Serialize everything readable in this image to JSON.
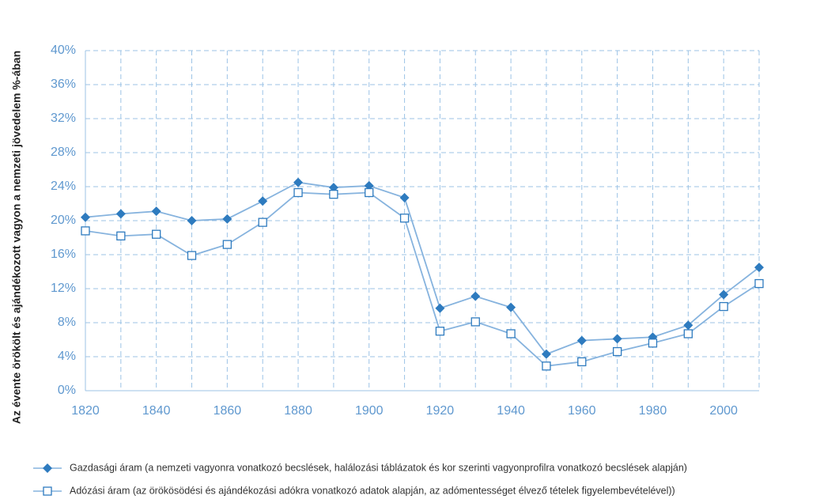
{
  "chart_data": {
    "type": "line",
    "ylabel": "Az évente örökölt és ajándékozott vagyon a nemzeti jövedelem %-ában",
    "x": [
      1820,
      1830,
      1840,
      1850,
      1860,
      1870,
      1880,
      1890,
      1900,
      1910,
      1920,
      1930,
      1940,
      1950,
      1960,
      1970,
      1980,
      1990,
      2000,
      2010
    ],
    "series": [
      {
        "name": "Gazdasági áram (a nemzeti vagyonra vonatkozó becslések, halálozási táblázatok és kor szerinti vagyonprofilra vonatkozó becslések alapján)",
        "color": "#2e7bbf",
        "marker": "diamond",
        "values": [
          20.4,
          20.8,
          21.1,
          20.0,
          20.2,
          22.3,
          24.5,
          23.9,
          24.1,
          22.7,
          9.7,
          11.1,
          9.8,
          4.3,
          5.9,
          6.1,
          6.3,
          7.7,
          11.3,
          14.5
        ]
      },
      {
        "name": "Adózási áram (az örökösödési és ajándékozási adókra vonatkozó adatok alapján, az adómentességet élvező tételek figyelembevételével))",
        "color": "#2e7bbf",
        "marker": "square",
        "values": [
          18.8,
          18.2,
          18.4,
          15.9,
          17.2,
          19.8,
          23.3,
          23.1,
          23.3,
          20.3,
          7.0,
          8.1,
          6.7,
          2.9,
          3.4,
          4.6,
          5.6,
          6.7,
          9.9,
          12.6
        ]
      }
    ],
    "xlim": [
      1820,
      2010
    ],
    "xticks": [
      1820,
      1840,
      1860,
      1880,
      1900,
      1920,
      1940,
      1960,
      1980,
      2000
    ],
    "x_minor_ticks": [
      1830,
      1850,
      1870,
      1890,
      1910,
      1930,
      1950,
      1970,
      1990,
      2010
    ],
    "ylim": [
      0,
      40
    ],
    "yticks": [
      {
        "value": 0,
        "label": "0%"
      },
      {
        "value": 4,
        "label": "4%"
      },
      {
        "value": 8,
        "label": "8%"
      },
      {
        "value": 12,
        "label": "12%"
      },
      {
        "value": 16,
        "label": "16%"
      },
      {
        "value": 20,
        "label": "20%"
      },
      {
        "value": 24,
        "label": "24%"
      },
      {
        "value": 28,
        "label": "28%"
      },
      {
        "value": 32,
        "label": "32%"
      },
      {
        "value": 36,
        "label": "36%"
      },
      {
        "value": 40,
        "label": "40%"
      }
    ],
    "grid": true,
    "legend": "bottom",
    "line_color": "#86b3de",
    "grid_color": "#9cc3e6"
  }
}
